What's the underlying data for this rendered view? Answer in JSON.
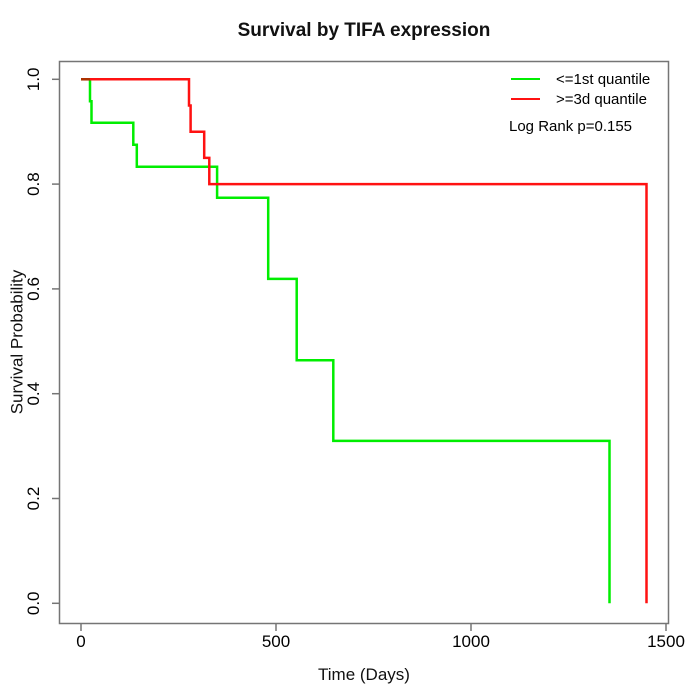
{
  "chart_data": {
    "type": "line",
    "subtype": "kaplan-meier-step",
    "title": "Survival by TIFA expression",
    "xlabel": "Time (Days)",
    "ylabel": "Survival Probability",
    "xlim": [
      0,
      1500
    ],
    "ylim": [
      0.0,
      1.0
    ],
    "xticks": [
      0,
      500,
      1000,
      1500
    ],
    "ytick_labels": [
      "0.0",
      "0.2",
      "0.4",
      "0.6",
      "0.8",
      "1.0"
    ],
    "yticks": [
      0.0,
      0.2,
      0.4,
      0.6,
      0.8,
      1.0
    ],
    "grid": false,
    "legend_position": "top-right",
    "annotation": "Log Rank p=0.155",
    "series": [
      {
        "name": "<=1st quantile",
        "color": "#00ee00",
        "points": [
          [
            0,
            1.0
          ],
          [
            23,
            0.958
          ],
          [
            27,
            0.917
          ],
          [
            134,
            0.875
          ],
          [
            143,
            0.833
          ],
          [
            349,
            0.774
          ],
          [
            480,
            0.619
          ],
          [
            553,
            0.464
          ],
          [
            647,
            0.31
          ],
          [
            1355,
            0.0
          ]
        ]
      },
      {
        "name": ">=3d quantile",
        "color": "#ff1111",
        "points": [
          [
            0,
            1.0
          ],
          [
            277,
            0.95
          ],
          [
            281,
            0.9
          ],
          [
            316,
            0.85
          ],
          [
            329,
            0.8
          ],
          [
            1450,
            0.0
          ]
        ]
      }
    ],
    "overlap_segment": {
      "color": "#aa3300",
      "y": 1.0,
      "x_from": 0,
      "x_to": 23
    },
    "axis_color": "#757575",
    "text_color": "#111111"
  }
}
